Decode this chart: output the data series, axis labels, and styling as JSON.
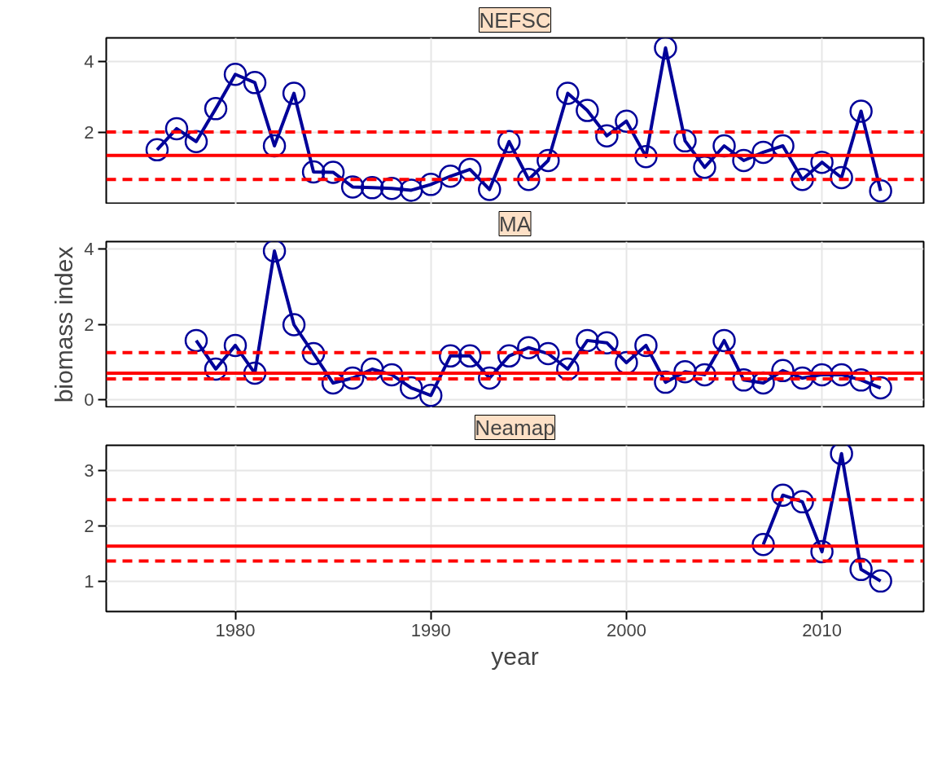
{
  "chart_data": [
    {
      "type": "line",
      "title": "NEFSC",
      "x": [
        1976,
        1977,
        1978,
        1979,
        1980,
        1981,
        1982,
        1983,
        1984,
        1985,
        1986,
        1987,
        1988,
        1989,
        1990,
        1991,
        1992,
        1993,
        1994,
        1995,
        1996,
        1997,
        1998,
        1999,
        2000,
        2001,
        2002,
        2003,
        2004,
        2005,
        2006,
        2007,
        2008,
        2009,
        2010,
        2011,
        2012,
        2013
      ],
      "series": [
        {
          "color": "#000099",
          "values": [
            1.52,
            2.11,
            1.75,
            2.67,
            3.63,
            3.4,
            1.63,
            3.1,
            0.9,
            0.89,
            0.48,
            0.46,
            0.44,
            0.39,
            0.55,
            0.78,
            0.97,
            0.41,
            1.75,
            0.69,
            1.22,
            3.1,
            2.62,
            1.91,
            2.32,
            1.33,
            4.37,
            1.77,
            1.03,
            1.63,
            1.22,
            1.45,
            1.63,
            0.69,
            1.17,
            0.74,
            2.6,
            0.37
          ]
        }
      ],
      "marker": "circle",
      "xlim": [
        1973.4,
        2015.2
      ],
      "xticks": [
        1980,
        1990,
        2000,
        2010
      ],
      "ylim": [
        0.0,
        4.65
      ],
      "yticks": [
        2,
        4
      ],
      "grid": true,
      "tick_labels": "y",
      "ref_lines": [
        {
          "axis": "y",
          "value": 1.36,
          "color": "#ff0000",
          "line_style": "solid"
        },
        {
          "axis": "y",
          "value": 2.02,
          "color": "#ff0000",
          "line_style": "dashed"
        },
        {
          "axis": "y",
          "value": 0.69,
          "color": "#ff0000",
          "line_style": "dashed"
        }
      ]
    },
    {
      "type": "line",
      "title": "MA",
      "ylabel": "biomass index",
      "x": [
        1978,
        1979,
        1980,
        1981,
        1982,
        1983,
        1984,
        1985,
        1986,
        1987,
        1988,
        1989,
        1990,
        1991,
        1992,
        1993,
        1994,
        1995,
        1996,
        1997,
        1998,
        1999,
        2000,
        2001,
        2002,
        2003,
        2004,
        2005,
        2006,
        2007,
        2008,
        2009,
        2010,
        2011,
        2012,
        2013
      ],
      "series": [
        {
          "color": "#000099",
          "values": [
            1.57,
            0.81,
            1.44,
            0.7,
            3.95,
            1.99,
            1.22,
            0.44,
            0.57,
            0.81,
            0.66,
            0.31,
            0.11,
            1.16,
            1.16,
            0.57,
            1.16,
            1.38,
            1.22,
            0.81,
            1.57,
            1.51,
            0.98,
            1.44,
            0.46,
            0.74,
            0.66,
            1.57,
            0.52,
            0.44,
            0.77,
            0.57,
            0.66,
            0.66,
            0.52,
            0.31
          ]
        }
      ],
      "marker": "circle",
      "xlim": [
        1973.4,
        2015.2
      ],
      "xticks": [
        1980,
        1990,
        2000,
        2010
      ],
      "ylim": [
        -0.22,
        4.2
      ],
      "yticks": [
        0,
        2,
        4
      ],
      "grid": true,
      "tick_labels": "y",
      "ref_lines": [
        {
          "axis": "y",
          "value": 0.7,
          "color": "#ff0000",
          "line_style": "solid"
        },
        {
          "axis": "y",
          "value": 1.25,
          "color": "#ff0000",
          "line_style": "dashed"
        },
        {
          "axis": "y",
          "value": 0.55,
          "color": "#ff0000",
          "line_style": "dashed"
        }
      ]
    },
    {
      "type": "line",
      "title": "Neamap",
      "xlabel": "year",
      "x": [
        2007,
        2008,
        2009,
        2010,
        2011,
        2012,
        2013
      ],
      "series": [
        {
          "color": "#000099",
          "values": [
            1.66,
            2.55,
            2.43,
            1.53,
            3.3,
            1.21,
            1.0
          ]
        }
      ],
      "marker": "circle",
      "xlim": [
        1973.4,
        2015.2
      ],
      "xticks": [
        1980,
        1990,
        2000,
        2010
      ],
      "ylim": [
        0.45,
        3.45
      ],
      "yticks": [
        1,
        2,
        3
      ],
      "grid": true,
      "ref_lines": [
        {
          "axis": "y",
          "value": 1.63,
          "color": "#ff0000",
          "line_style": "solid"
        },
        {
          "axis": "y",
          "value": 2.47,
          "color": "#ff0000",
          "line_style": "dashed"
        },
        {
          "axis": "y",
          "value": 1.36,
          "color": "#ff0000",
          "line_style": "dashed"
        }
      ]
    }
  ]
}
